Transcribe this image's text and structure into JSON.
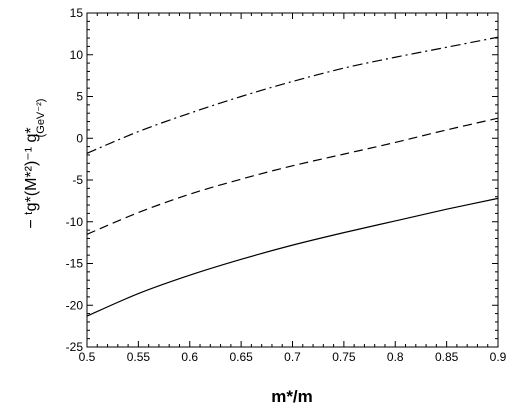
{
  "chart_data": {
    "type": "line",
    "xlabel": "m*/m",
    "ylabel": {
      "main": "− ᵗg*(M*²)⁻¹ g*",
      "unit": "(GeV⁻²)"
    },
    "xlim": [
      0.5,
      0.9
    ],
    "ylim": [
      -25,
      15
    ],
    "x_ticks": [
      0.5,
      0.55,
      0.6,
      0.65,
      0.7,
      0.75,
      0.8,
      0.85,
      0.9
    ],
    "x_tick_labels": [
      "0.5",
      "0.55",
      "0.6",
      "0.65",
      "0.7",
      "0.75",
      "0.8",
      "0.85",
      "0.9"
    ],
    "y_ticks": [
      -25,
      -20,
      -15,
      -10,
      -5,
      0,
      5,
      10,
      15
    ],
    "y_tick_labels": [
      "-25",
      "-20",
      "-15",
      "-10",
      "-5",
      "0",
      "5",
      "10",
      "15"
    ],
    "grid": false,
    "legend": "none",
    "x": [
      0.5,
      0.55,
      0.6,
      0.65,
      0.7,
      0.75,
      0.8,
      0.85,
      0.9
    ],
    "series": [
      {
        "style": "solid",
        "color": "#000000",
        "values": [
          -21.3,
          -18.6,
          -16.4,
          -14.5,
          -12.8,
          -11.3,
          -9.9,
          -8.5,
          -7.2
        ]
      },
      {
        "style": "dashed",
        "color": "#000000",
        "values": [
          -11.5,
          -8.9,
          -6.7,
          -4.9,
          -3.3,
          -1.9,
          -0.5,
          1.0,
          2.4
        ]
      },
      {
        "style": "dash-dot",
        "color": "#000000",
        "values": [
          -1.8,
          0.8,
          3.0,
          5.0,
          6.8,
          8.4,
          9.7,
          10.9,
          12.1
        ]
      }
    ]
  }
}
